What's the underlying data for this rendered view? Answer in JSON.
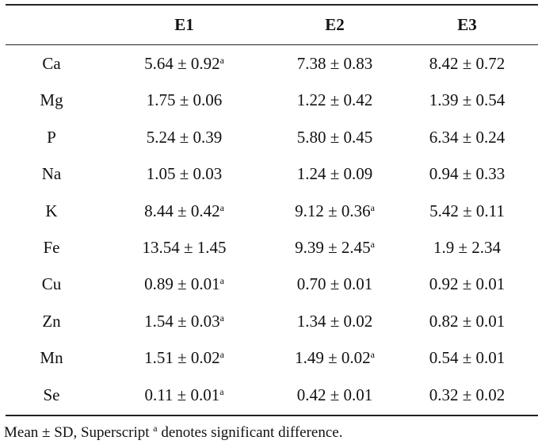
{
  "table": {
    "columns": [
      "",
      "E1",
      "E2",
      "E3"
    ],
    "rows": [
      {
        "element": "Ca",
        "cells": [
          {
            "value": "5.64 ± 0.92",
            "sup": "a"
          },
          {
            "value": "7.38 ± 0.83",
            "sup": ""
          },
          {
            "value": "8.42 ± 0.72",
            "sup": ""
          }
        ]
      },
      {
        "element": "Mg",
        "cells": [
          {
            "value": "1.75 ± 0.06",
            "sup": ""
          },
          {
            "value": "1.22 ± 0.42",
            "sup": ""
          },
          {
            "value": "1.39 ± 0.54",
            "sup": ""
          }
        ]
      },
      {
        "element": "P",
        "cells": [
          {
            "value": "5.24 ± 0.39",
            "sup": ""
          },
          {
            "value": "5.80 ± 0.45",
            "sup": ""
          },
          {
            "value": "6.34 ± 0.24",
            "sup": ""
          }
        ]
      },
      {
        "element": "Na",
        "cells": [
          {
            "value": "1.05 ± 0.03",
            "sup": ""
          },
          {
            "value": "1.24 ± 0.09",
            "sup": ""
          },
          {
            "value": "0.94 ± 0.33",
            "sup": ""
          }
        ]
      },
      {
        "element": "K",
        "cells": [
          {
            "value": "8.44 ± 0.42",
            "sup": "a"
          },
          {
            "value": "9.12 ± 0.36",
            "sup": "a"
          },
          {
            "value": "5.42 ± 0.11",
            "sup": ""
          }
        ]
      },
      {
        "element": "Fe",
        "cells": [
          {
            "value": "13.54 ± 1.45",
            "sup": ""
          },
          {
            "value": "9.39 ± 2.45",
            "sup": "a"
          },
          {
            "value": "1.9 ± 2.34",
            "sup": ""
          }
        ]
      },
      {
        "element": "Cu",
        "cells": [
          {
            "value": "0.89 ± 0.01",
            "sup": "a"
          },
          {
            "value": "0.70 ± 0.01",
            "sup": ""
          },
          {
            "value": "0.92 ± 0.01",
            "sup": ""
          }
        ]
      },
      {
        "element": "Zn",
        "cells": [
          {
            "value": "1.54 ± 0.03",
            "sup": "a"
          },
          {
            "value": "1.34 ± 0.02",
            "sup": ""
          },
          {
            "value": "0.82 ± 0.01",
            "sup": ""
          }
        ]
      },
      {
        "element": "Mn",
        "cells": [
          {
            "value": "1.51 ± 0.02",
            "sup": "a"
          },
          {
            "value": "1.49 ± 0.02",
            "sup": "a"
          },
          {
            "value": "0.54 ± 0.01",
            "sup": ""
          }
        ]
      },
      {
        "element": "Se",
        "cells": [
          {
            "value": "0.11 ± 0.01",
            "sup": "a"
          },
          {
            "value": "0.42 ± 0.01",
            "sup": ""
          },
          {
            "value": "0.32 ± 0.02",
            "sup": ""
          }
        ]
      }
    ]
  },
  "footnote": {
    "before": "Mean ± SD, Superscript ",
    "sup": "a",
    "after": " denotes significant difference."
  }
}
